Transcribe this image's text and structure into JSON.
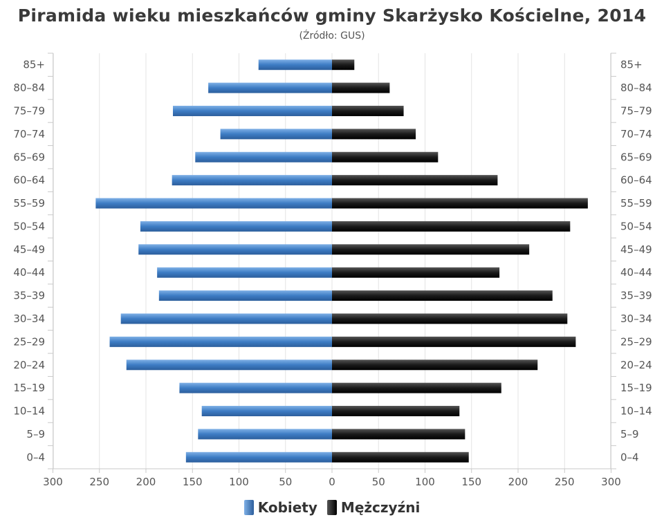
{
  "chart_data": {
    "type": "bar",
    "orientation": "horizontal-pyramid",
    "title": "Piramida wieku mieszkańców gminy Skarżysko Kościelne, 2014",
    "subtitle": "(Źródło: GUS)",
    "categories": [
      "85+",
      "80–84",
      "75–79",
      "70–74",
      "65–69",
      "60–64",
      "55–59",
      "50–54",
      "45–49",
      "40–44",
      "35–39",
      "30–34",
      "25–29",
      "20–24",
      "15–19",
      "10–14",
      "5–9",
      "0–4"
    ],
    "series": [
      {
        "name": "Kobiety",
        "color": "#4a86c8",
        "values": [
          79,
          133,
          171,
          120,
          147,
          172,
          254,
          206,
          208,
          188,
          186,
          227,
          239,
          221,
          164,
          140,
          144,
          157
        ]
      },
      {
        "name": "Mężczyźni",
        "color": "#222222",
        "values": [
          24,
          62,
          77,
          90,
          114,
          178,
          275,
          256,
          212,
          180,
          237,
          253,
          262,
          221,
          182,
          137,
          143,
          147
        ]
      }
    ],
    "x_ticks": [
      "300",
      "250",
      "200",
      "150",
      "100",
      "50",
      "0",
      "50",
      "100",
      "150",
      "200",
      "250",
      "300"
    ],
    "xlim": [
      -300,
      300
    ],
    "grid": true,
    "legend": "bottom-center"
  }
}
